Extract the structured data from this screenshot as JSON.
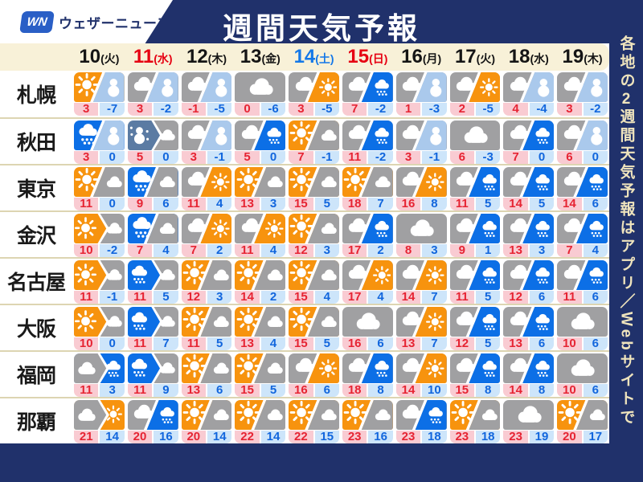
{
  "header": {
    "logo_badge": "WN",
    "logo_text": "ウェザーニュース",
    "title": "週間天気予報"
  },
  "side_note": "各地の2週間天気予報はアプリ／Webサイトで",
  "colors": {
    "navy": "#20316b",
    "band_bg": "#f8f1d8",
    "sun": "#f7930e",
    "cloud": "#a0a0a2",
    "rain": "#0c6fe6",
    "snow": "#aac9ec",
    "sleet": "#5b7ba3",
    "hi_bg": "#f9cbd2",
    "hi_text": "#e62433",
    "lo_bg": "#cde5fa",
    "lo_text": "#1266dd",
    "date_red": "#e60012",
    "date_blue": "#1478e8",
    "logo_blue": "#2a5fc6"
  },
  "chart_data": {
    "type": "table",
    "title": "週間天気予報",
    "columns": [
      {
        "day": "10",
        "weekday": "火",
        "color": "black"
      },
      {
        "day": "11",
        "weekday": "水",
        "color": "red"
      },
      {
        "day": "12",
        "weekday": "木",
        "color": "black"
      },
      {
        "day": "13",
        "weekday": "金",
        "color": "black"
      },
      {
        "day": "14",
        "weekday": "土",
        "color": "blue"
      },
      {
        "day": "15",
        "weekday": "日",
        "color": "red"
      },
      {
        "day": "16",
        "weekday": "月",
        "color": "black"
      },
      {
        "day": "17",
        "weekday": "火",
        "color": "black"
      },
      {
        "day": "18",
        "weekday": "水",
        "color": "black"
      },
      {
        "day": "19",
        "weekday": "木",
        "color": "black"
      }
    ],
    "rows": [
      {
        "city": "札幌",
        "cells": [
          {
            "mode": "split",
            "w1": "sun",
            "w2": "snow",
            "hi": "3",
            "lo": "-7"
          },
          {
            "mode": "split",
            "w1": "cloud",
            "w2": "snow",
            "hi": "3",
            "lo": "-2"
          },
          {
            "mode": "split",
            "w1": "cloud",
            "w2": "snow",
            "hi": "-1",
            "lo": "-5"
          },
          {
            "mode": "single",
            "w1": "cloud",
            "hi": "0",
            "lo": "-6"
          },
          {
            "mode": "split",
            "w1": "cloud",
            "w2": "sun",
            "hi": "3",
            "lo": "-5"
          },
          {
            "mode": "split",
            "w1": "cloud",
            "w2": "rain",
            "hi": "7",
            "lo": "-2"
          },
          {
            "mode": "split",
            "w1": "cloud",
            "w2": "snow",
            "hi": "1",
            "lo": "-3"
          },
          {
            "mode": "split",
            "w1": "cloud",
            "w2": "sun",
            "hi": "2",
            "lo": "-5"
          },
          {
            "mode": "split",
            "w1": "cloud",
            "w2": "snow",
            "hi": "4",
            "lo": "-4"
          },
          {
            "mode": "split",
            "w1": "cloud",
            "w2": "snow",
            "hi": "3",
            "lo": "-2"
          }
        ]
      },
      {
        "city": "秋田",
        "cells": [
          {
            "mode": "split",
            "w1": "rain",
            "w2": "snow",
            "hi": "3",
            "lo": "0"
          },
          {
            "mode": "arrow",
            "w1": "sleet",
            "w2": "cloud",
            "hi": "5",
            "lo": "0"
          },
          {
            "mode": "split",
            "w1": "cloud",
            "w2": "snow",
            "hi": "3",
            "lo": "-1"
          },
          {
            "mode": "split",
            "w1": "cloud",
            "w2": "rain",
            "hi": "5",
            "lo": "0"
          },
          {
            "mode": "split",
            "w1": "sun",
            "w2": "cloud",
            "hi": "7",
            "lo": "-1"
          },
          {
            "mode": "split",
            "w1": "cloud",
            "w2": "rain",
            "hi": "11",
            "lo": "-2"
          },
          {
            "mode": "split",
            "w1": "cloud",
            "w2": "snow",
            "hi": "3",
            "lo": "-1"
          },
          {
            "mode": "single",
            "w1": "cloud",
            "hi": "6",
            "lo": "-3"
          },
          {
            "mode": "split",
            "w1": "cloud",
            "w2": "rain",
            "hi": "7",
            "lo": "0"
          },
          {
            "mode": "split",
            "w1": "cloud",
            "w2": "snow",
            "hi": "6",
            "lo": "0"
          }
        ]
      },
      {
        "city": "東京",
        "cells": [
          {
            "mode": "split",
            "w1": "sun",
            "w2": "cloud",
            "hi": "11",
            "lo": "0"
          },
          {
            "mode": "split",
            "w1": "rain",
            "w2": "cloud",
            "hi": "9",
            "lo": "6"
          },
          {
            "mode": "split",
            "w1": "cloud",
            "w2": "sun",
            "hi": "11",
            "lo": "4"
          },
          {
            "mode": "split",
            "w1": "sun",
            "w2": "cloud",
            "hi": "13",
            "lo": "3"
          },
          {
            "mode": "split",
            "w1": "sun",
            "w2": "cloud",
            "hi": "15",
            "lo": "5"
          },
          {
            "mode": "split",
            "w1": "sun",
            "w2": "cloud",
            "hi": "18",
            "lo": "7"
          },
          {
            "mode": "split",
            "w1": "cloud",
            "w2": "sun",
            "hi": "16",
            "lo": "8"
          },
          {
            "mode": "split",
            "w1": "cloud",
            "w2": "rain",
            "hi": "11",
            "lo": "5"
          },
          {
            "mode": "split",
            "w1": "cloud",
            "w2": "rain",
            "hi": "14",
            "lo": "5"
          },
          {
            "mode": "split",
            "w1": "cloud",
            "w2": "rain",
            "hi": "14",
            "lo": "6"
          }
        ]
      },
      {
        "city": "金沢",
        "cells": [
          {
            "mode": "arrow",
            "w1": "sun",
            "w2": "cloud",
            "hi": "10",
            "lo": "-2"
          },
          {
            "mode": "split",
            "w1": "rain",
            "w2": "cloud",
            "hi": "7",
            "lo": "4"
          },
          {
            "mode": "split",
            "w1": "cloud",
            "w2": "sun",
            "hi": "7",
            "lo": "2"
          },
          {
            "mode": "split",
            "w1": "cloud",
            "w2": "sun",
            "hi": "11",
            "lo": "4"
          },
          {
            "mode": "split",
            "w1": "sun",
            "w2": "cloud",
            "hi": "12",
            "lo": "3"
          },
          {
            "mode": "split",
            "w1": "cloud",
            "w2": "rain",
            "hi": "17",
            "lo": "2"
          },
          {
            "mode": "single",
            "w1": "cloud",
            "hi": "8",
            "lo": "3"
          },
          {
            "mode": "split",
            "w1": "cloud",
            "w2": "rain",
            "hi": "9",
            "lo": "1"
          },
          {
            "mode": "split",
            "w1": "cloud",
            "w2": "rain",
            "hi": "13",
            "lo": "3"
          },
          {
            "mode": "split",
            "w1": "cloud",
            "w2": "rain",
            "hi": "7",
            "lo": "4"
          }
        ]
      },
      {
        "city": "名古屋",
        "cells": [
          {
            "mode": "arrow",
            "w1": "sun",
            "w2": "cloud",
            "hi": "11",
            "lo": "-1"
          },
          {
            "mode": "arrow",
            "w1": "rain",
            "w2": "cloud",
            "hi": "11",
            "lo": "5"
          },
          {
            "mode": "split",
            "w1": "sun",
            "w2": "cloud",
            "hi": "12",
            "lo": "3"
          },
          {
            "mode": "split",
            "w1": "sun",
            "w2": "cloud",
            "hi": "14",
            "lo": "2"
          },
          {
            "mode": "split",
            "w1": "sun",
            "w2": "cloud",
            "hi": "15",
            "lo": "4"
          },
          {
            "mode": "split",
            "w1": "cloud",
            "w2": "sun",
            "hi": "17",
            "lo": "4"
          },
          {
            "mode": "split",
            "w1": "cloud",
            "w2": "sun",
            "hi": "14",
            "lo": "7"
          },
          {
            "mode": "split",
            "w1": "cloud",
            "w2": "rain",
            "hi": "11",
            "lo": "5"
          },
          {
            "mode": "split",
            "w1": "cloud",
            "w2": "rain",
            "hi": "12",
            "lo": "6"
          },
          {
            "mode": "split",
            "w1": "cloud",
            "w2": "rain",
            "hi": "11",
            "lo": "6"
          }
        ]
      },
      {
        "city": "大阪",
        "cells": [
          {
            "mode": "arrow",
            "w1": "sun",
            "w2": "cloud",
            "hi": "10",
            "lo": "0"
          },
          {
            "mode": "arrow",
            "w1": "rain",
            "w2": "cloud",
            "hi": "11",
            "lo": "7"
          },
          {
            "mode": "split",
            "w1": "sun",
            "w2": "cloud",
            "hi": "11",
            "lo": "5"
          },
          {
            "mode": "split",
            "w1": "sun",
            "w2": "cloud",
            "hi": "13",
            "lo": "4"
          },
          {
            "mode": "split",
            "w1": "sun",
            "w2": "cloud",
            "hi": "15",
            "lo": "5"
          },
          {
            "mode": "single",
            "w1": "cloud",
            "hi": "16",
            "lo": "6"
          },
          {
            "mode": "split",
            "w1": "cloud",
            "w2": "sun",
            "hi": "13",
            "lo": "7"
          },
          {
            "mode": "split",
            "w1": "cloud",
            "w2": "rain",
            "hi": "12",
            "lo": "5"
          },
          {
            "mode": "split",
            "w1": "cloud",
            "w2": "rain",
            "hi": "13",
            "lo": "6"
          },
          {
            "mode": "single",
            "w1": "cloud",
            "hi": "10",
            "lo": "6"
          }
        ]
      },
      {
        "city": "福岡",
        "cells": [
          {
            "mode": "arrow",
            "w1": "cloud",
            "w2": "rain",
            "hi": "11",
            "lo": "3"
          },
          {
            "mode": "arrow",
            "w1": "rain",
            "w2": "cloud",
            "hi": "11",
            "lo": "9"
          },
          {
            "mode": "split",
            "w1": "sun",
            "w2": "cloud",
            "hi": "13",
            "lo": "6"
          },
          {
            "mode": "split",
            "w1": "sun",
            "w2": "cloud",
            "hi": "15",
            "lo": "5"
          },
          {
            "mode": "split",
            "w1": "cloud",
            "w2": "sun",
            "hi": "16",
            "lo": "6"
          },
          {
            "mode": "split",
            "w1": "cloud",
            "w2": "rain",
            "hi": "18",
            "lo": "8"
          },
          {
            "mode": "split",
            "w1": "cloud",
            "w2": "sun",
            "hi": "14",
            "lo": "10"
          },
          {
            "mode": "split",
            "w1": "cloud",
            "w2": "rain",
            "hi": "15",
            "lo": "8"
          },
          {
            "mode": "split",
            "w1": "cloud",
            "w2": "rain",
            "hi": "14",
            "lo": "8"
          },
          {
            "mode": "single",
            "w1": "cloud",
            "hi": "10",
            "lo": "6"
          }
        ]
      },
      {
        "city": "那覇",
        "cells": [
          {
            "mode": "arrow",
            "w1": "cloud",
            "w2": "sun",
            "hi": "21",
            "lo": "14"
          },
          {
            "mode": "split",
            "w1": "cloud",
            "w2": "rain",
            "hi": "20",
            "lo": "16"
          },
          {
            "mode": "split",
            "w1": "sun",
            "w2": "cloud",
            "hi": "20",
            "lo": "14"
          },
          {
            "mode": "split",
            "w1": "sun",
            "w2": "cloud",
            "hi": "22",
            "lo": "14"
          },
          {
            "mode": "split",
            "w1": "sun",
            "w2": "cloud",
            "hi": "22",
            "lo": "15"
          },
          {
            "mode": "split",
            "w1": "sun",
            "w2": "cloud",
            "hi": "23",
            "lo": "16"
          },
          {
            "mode": "split",
            "w1": "cloud",
            "w2": "rain",
            "hi": "23",
            "lo": "18"
          },
          {
            "mode": "split",
            "w1": "sun",
            "w2": "cloud",
            "hi": "23",
            "lo": "18"
          },
          {
            "mode": "single",
            "w1": "cloud",
            "hi": "23",
            "lo": "19"
          },
          {
            "mode": "split",
            "w1": "sun",
            "w2": "cloud",
            "hi": "20",
            "lo": "17"
          }
        ]
      }
    ]
  }
}
